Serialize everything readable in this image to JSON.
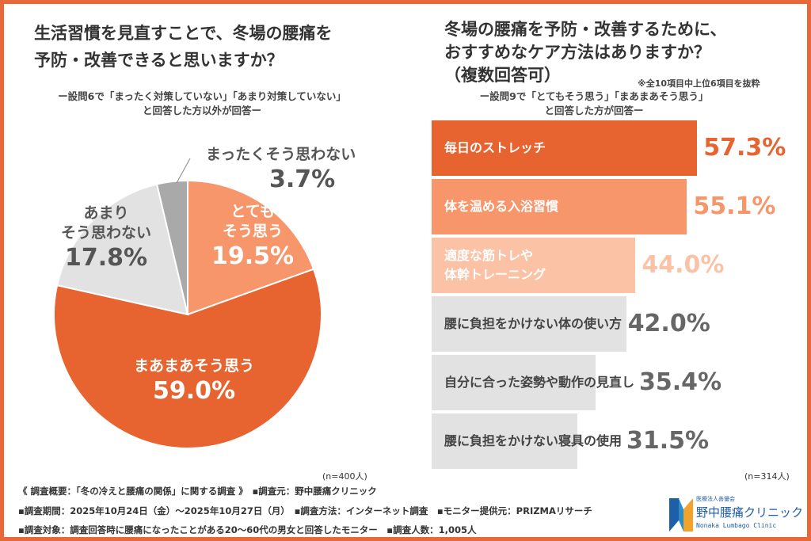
{
  "left": {
    "title_lines": [
      "生活習慣を見直すことで、冬場の腰痛を",
      "予防・改善できると思いますか？"
    ],
    "subtitle_lines": [
      "ー設問6で「まったく対策していない」「あまり対策していない」",
      "と回答した方以外が回答ー"
    ],
    "n": "(n=400人)"
  },
  "right": {
    "title_lines": [
      "冬場の腰痛を予防・改善するために、",
      "おすすめなケア方法はありますか？",
      "（複数回答可）"
    ],
    "note": "※全10項目中上位6項目を抜粋",
    "subtitle_lines": [
      "ー設問9で「とてもそう思う」「まあまあそう思う」",
      "と回答した方が回答ー"
    ],
    "n": "(n=314人)"
  },
  "chart_data": [
    {
      "type": "pie",
      "start": "top",
      "direction": "clockwise",
      "slices": [
        {
          "label_lines": [
            "とても",
            "そう思う"
          ],
          "value": 19.5,
          "value_label": "19.5%",
          "color": "#f7956b"
        },
        {
          "label_lines": [
            "まあまあそう思う"
          ],
          "value": 59.0,
          "value_label": "59.0%",
          "color": "#e7632f"
        },
        {
          "label_lines": [
            "あまり",
            "そう思わない"
          ],
          "value": 17.8,
          "value_label": "17.8%",
          "color": "#e2e2e2"
        },
        {
          "label_lines": [
            "まったくそう思わない"
          ],
          "value": 3.7,
          "value_label": "3.7%",
          "color": "#a9a9a9"
        }
      ]
    },
    {
      "type": "bar",
      "orientation": "horizontal",
      "bars": [
        {
          "label_lines": [
            "毎日のストレッチ"
          ],
          "value": 57.3,
          "value_label": "57.3%",
          "color": "#e7632f",
          "text_color": "#ffffff",
          "value_color": "#e7632f"
        },
        {
          "label_lines": [
            "体を温める入浴習慣"
          ],
          "value": 55.1,
          "value_label": "55.1%",
          "color": "#f7956b",
          "text_color": "#ffffff",
          "value_color": "#f7956b"
        },
        {
          "label_lines": [
            "適度な筋トレや",
            "体幹トレーニング"
          ],
          "value": 44.0,
          "value_label": "44.0%",
          "color": "#fbc2a6",
          "text_color": "#ffffff",
          "value_color": "#fbc2a6"
        },
        {
          "label_lines": [
            "腰に負担をかけない体の使い方"
          ],
          "value": 42.0,
          "value_label": "42.0%",
          "color": "#e2e2e2",
          "text_color": "#444444",
          "value_color": "#666666"
        },
        {
          "label_lines": [
            "自分に合った姿勢や動作の見直し"
          ],
          "value": 35.4,
          "value_label": "35.4%",
          "color": "#e2e2e2",
          "text_color": "#444444",
          "value_color": "#666666"
        },
        {
          "label_lines": [
            "腰に負担をかけない寝具の使用"
          ],
          "value": 31.5,
          "value_label": "31.5%",
          "color": "#e2e2e2",
          "text_color": "#444444",
          "value_color": "#666666"
        }
      ]
    }
  ],
  "footer": {
    "lines": [
      "《 調査概要：「冬の冷えと腰痛の関係」に関する調査 》　▪調査元：野中腰痛クリニック",
      "▪調査期間：2025年10月24日（金）～2025年10月27日（月）　▪調査方法：インターネット調査　▪モニター提供元：PRIZMAリサーチ",
      "▪調査対象：調査回答時に腰痛になったことがある20～60代の男女と回答したモニター　▪調査人数：1,005人"
    ],
    "logo": {
      "small": "医療法人善優会",
      "name": "野中腰痛クリニック",
      "en": "Nonaka Lumbago Clinic",
      "colors": [
        "#1f5ea8",
        "#f2a32c"
      ]
    }
  }
}
